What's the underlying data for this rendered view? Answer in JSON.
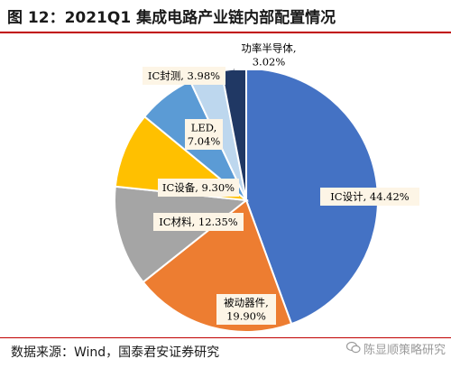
{
  "title": "图 12：2021Q1 集成电路产业链内部配置情况",
  "source": "数据来源：Wind，国泰君安证券研究",
  "watermark": "陈显顺策略研究",
  "chart_data": {
    "type": "pie",
    "title": "",
    "slices": [
      {
        "name": "IC设计",
        "value": 44.42,
        "label_lines": [
          "IC设计, 44.42%"
        ],
        "color": "#4472c4"
      },
      {
        "name": "被动器件",
        "value": 19.9,
        "label_lines": [
          "被动器件,",
          "19.90%"
        ],
        "color": "#ed7d31"
      },
      {
        "name": "IC材料",
        "value": 12.35,
        "label_lines": [
          "IC材料, 12.35%"
        ],
        "color": "#a5a5a5"
      },
      {
        "name": "IC设备",
        "value": 9.3,
        "label_lines": [
          "IC设备, 9.30%"
        ],
        "color": "#ffc000"
      },
      {
        "name": "LED",
        "value": 7.04,
        "label_lines": [
          "LED,",
          "7.04%"
        ],
        "color": "#5b9bd5"
      },
      {
        "name": "IC封测",
        "value": 3.98,
        "label_lines": [
          "IC封测, 3.98%"
        ],
        "color": "#bdd7ee"
      },
      {
        "name": "功率半导体",
        "value": 3.02,
        "label_lines": [
          "功率半导体,",
          "3.02%"
        ],
        "color": "#203864"
      }
    ]
  }
}
